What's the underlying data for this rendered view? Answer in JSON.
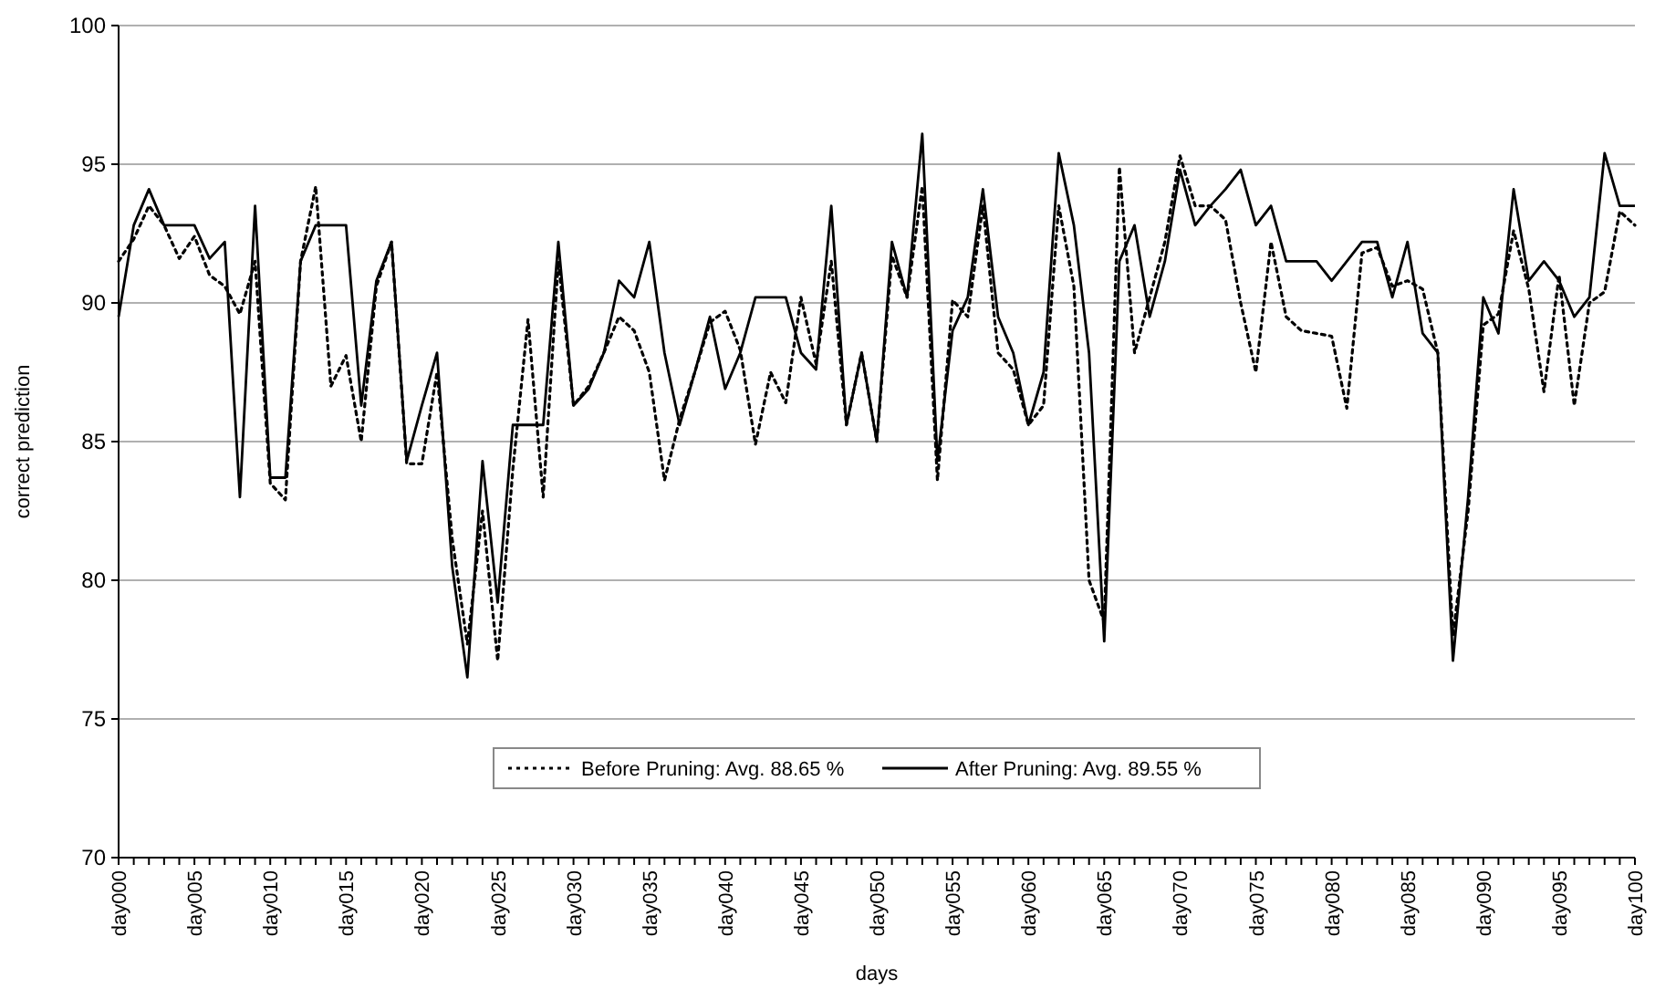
{
  "chart_data": {
    "type": "line",
    "xlabel": "days",
    "ylabel": "correct prediction",
    "categories": [
      "day000",
      null,
      null,
      null,
      null,
      "day005",
      null,
      null,
      null,
      null,
      "day010",
      null,
      null,
      null,
      null,
      "day015",
      null,
      null,
      null,
      null,
      "day020",
      null,
      null,
      null,
      null,
      "day025",
      null,
      null,
      null,
      null,
      "day030",
      null,
      null,
      null,
      null,
      "day035",
      null,
      null,
      null,
      null,
      "day040",
      null,
      null,
      null,
      null,
      "day045",
      null,
      null,
      null,
      null,
      "day050",
      null,
      null,
      null,
      null,
      "day055",
      null,
      null,
      null,
      null,
      "day060",
      null,
      null,
      null,
      null,
      "day065",
      null,
      null,
      null,
      null,
      "day070",
      null,
      null,
      null,
      null,
      "day075",
      null,
      null,
      null,
      null,
      "day080",
      null,
      null,
      null,
      null,
      "day085",
      null,
      null,
      null,
      null,
      "day090",
      null,
      null,
      null,
      null,
      "day095",
      null,
      null,
      null,
      null,
      "day100"
    ],
    "ylim": [
      70,
      100
    ],
    "yticks": [
      70,
      75,
      80,
      85,
      90,
      95,
      100
    ],
    "grid": "y",
    "legend": "bottom",
    "marker": "none",
    "series": [
      {
        "name": "Before Pruning: Avg. 88.65 %",
        "color": "#000000",
        "line_style": "dotted",
        "values": [
          91.5,
          92.3,
          93.5,
          92.8,
          91.6,
          92.4,
          91.0,
          90.6,
          89.6,
          91.5,
          83.5,
          82.9,
          91.5,
          94.2,
          87.0,
          88.1,
          85.0,
          90.6,
          92.2,
          84.2,
          84.2,
          87.5,
          81.5,
          77.7,
          82.5,
          77.1,
          84.0,
          89.4,
          83.0,
          91.5,
          86.3,
          87.0,
          88.2,
          89.5,
          89.0,
          87.5,
          83.6,
          85.8,
          87.5,
          89.3,
          89.7,
          88.3,
          84.9,
          87.5,
          86.4,
          90.2,
          87.8,
          91.5,
          85.6,
          88.2,
          85.0,
          91.7,
          90.2,
          94.2,
          83.6,
          90.1,
          89.5,
          93.5,
          88.2,
          87.6,
          85.6,
          86.3,
          93.5,
          90.6,
          80.0,
          78.5,
          94.9,
          88.2,
          90.2,
          92.2,
          95.3,
          93.5,
          93.5,
          93.0,
          90.0,
          87.5,
          92.2,
          89.5,
          89.0,
          88.9,
          88.8,
          86.2,
          91.8,
          92.0,
          90.6,
          90.8,
          90.5,
          88.2,
          78.0,
          82.5,
          89.2,
          89.6,
          92.6,
          90.5,
          86.8,
          91.0,
          86.3,
          90.0,
          90.4,
          93.3,
          92.8
        ]
      },
      {
        "name": "After Pruning: Avg. 89.55 %",
        "color": "#000000",
        "line_style": "solid",
        "values": [
          89.5,
          92.8,
          94.1,
          92.8,
          92.8,
          92.8,
          91.6,
          92.2,
          83.0,
          93.5,
          83.7,
          83.7,
          91.5,
          92.8,
          92.8,
          92.8,
          86.3,
          90.8,
          92.2,
          84.3,
          86.3,
          88.2,
          80.5,
          76.5,
          84.3,
          79.2,
          85.6,
          85.6,
          85.6,
          92.2,
          86.3,
          86.9,
          88.2,
          90.8,
          90.2,
          92.2,
          88.2,
          85.6,
          87.5,
          89.5,
          86.9,
          88.2,
          90.2,
          90.2,
          90.2,
          88.2,
          87.6,
          93.5,
          85.6,
          88.2,
          85.0,
          92.2,
          90.2,
          96.1,
          84.3,
          89.0,
          90.2,
          94.1,
          89.5,
          88.2,
          85.6,
          87.5,
          95.4,
          92.8,
          88.2,
          77.8,
          91.5,
          92.8,
          89.5,
          91.5,
          94.8,
          92.8,
          93.5,
          94.1,
          94.8,
          92.8,
          93.5,
          91.5,
          91.5,
          91.5,
          90.8,
          91.5,
          92.2,
          92.2,
          90.2,
          92.2,
          88.9,
          88.2,
          77.1,
          83.0,
          90.2,
          88.9,
          94.1,
          90.8,
          91.5,
          90.8,
          89.5,
          90.2,
          95.4,
          93.5,
          93.5
        ]
      }
    ]
  }
}
